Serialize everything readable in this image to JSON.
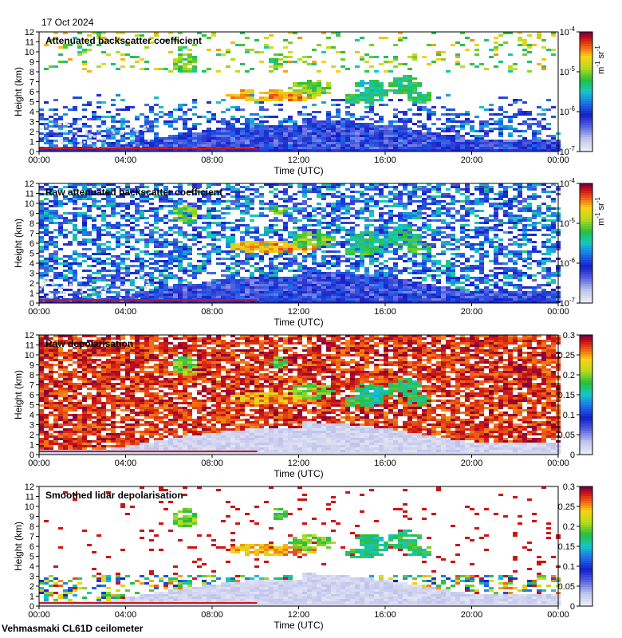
{
  "date": "17 Oct 2024",
  "footer": "Vehmasmaki CL61D ceilometer",
  "chart_data": [
    {
      "type": "heatmap",
      "title": "Attenuated backscatter coefficient",
      "xlabel": "Time (UTC)",
      "ylabel": "Height (km)",
      "xticks": [
        "00:00",
        "04:00",
        "08:00",
        "12:00",
        "16:00",
        "20:00",
        "00:00"
      ],
      "yticks": [
        "0",
        "1",
        "2",
        "3",
        "4",
        "5",
        "6",
        "7",
        "8",
        "9",
        "10",
        "11",
        "12"
      ],
      "xlim_hours": [
        0,
        24
      ],
      "ylim_km": [
        0,
        12
      ],
      "colorbar": {
        "scale": "log",
        "range": [
          1e-07,
          0.0001
        ],
        "ticks": [
          {
            "base": "10",
            "exp": "-4"
          },
          {
            "base": "10",
            "exp": "-5"
          },
          {
            "base": "10",
            "exp": "-6"
          },
          {
            "base": "10",
            "exp": "-7"
          }
        ],
        "units": {
          "main": "m",
          "exp1": "-1",
          "mid": " sr",
          "exp2": "-1"
        }
      }
    },
    {
      "type": "heatmap",
      "title": "Raw attenuated backscatter coefficient",
      "xlabel": "Time (UTC)",
      "ylabel": "Height (km)",
      "xticks": [
        "00:00",
        "04:00",
        "08:00",
        "12:00",
        "16:00",
        "20:00",
        "00:00"
      ],
      "yticks": [
        "0",
        "1",
        "2",
        "3",
        "4",
        "5",
        "6",
        "7",
        "8",
        "9",
        "10",
        "11",
        "12"
      ],
      "xlim_hours": [
        0,
        24
      ],
      "ylim_km": [
        0,
        12
      ],
      "colorbar": {
        "scale": "log",
        "range": [
          1e-07,
          0.0001
        ],
        "ticks": [
          {
            "base": "10",
            "exp": "-4"
          },
          {
            "base": "10",
            "exp": "-5"
          },
          {
            "base": "10",
            "exp": "-6"
          },
          {
            "base": "10",
            "exp": "-7"
          }
        ],
        "units": {
          "main": "m",
          "exp1": "-1",
          "mid": " sr",
          "exp2": "-1"
        }
      }
    },
    {
      "type": "heatmap",
      "title": "Raw depolarisation",
      "xlabel": "Time (UTC)",
      "ylabel": "Height (km)",
      "xticks": [
        "00:00",
        "04:00",
        "08:00",
        "12:00",
        "16:00",
        "20:00",
        "00:00"
      ],
      "yticks": [
        "0",
        "1",
        "2",
        "3",
        "4",
        "5",
        "6",
        "7",
        "8",
        "9",
        "10",
        "11",
        "12"
      ],
      "xlim_hours": [
        0,
        24
      ],
      "ylim_km": [
        0,
        12
      ],
      "colorbar": {
        "scale": "linear",
        "range": [
          0,
          0.3
        ],
        "ticks": [
          "0.3",
          "0.25",
          "0.2",
          "0.15",
          "0.1",
          "0.05",
          "0"
        ]
      }
    },
    {
      "type": "heatmap",
      "title": "Smoothed lidar depolarisation",
      "xlabel": "Time (UTC)",
      "ylabel": "Height (km)",
      "xticks": [
        "00:00",
        "04:00",
        "08:00",
        "12:00",
        "16:00",
        "20:00",
        "00:00"
      ],
      "yticks": [
        "0",
        "1",
        "2",
        "3",
        "4",
        "5",
        "6",
        "7",
        "8",
        "9",
        "10",
        "11",
        "12"
      ],
      "xlim_hours": [
        0,
        24
      ],
      "ylim_km": [
        0,
        12
      ],
      "colorbar": {
        "scale": "linear",
        "range": [
          0,
          0.3
        ],
        "ticks": [
          "0.3",
          "0.25",
          "0.2",
          "0.15",
          "0.1",
          "0.05",
          "0"
        ]
      }
    }
  ]
}
